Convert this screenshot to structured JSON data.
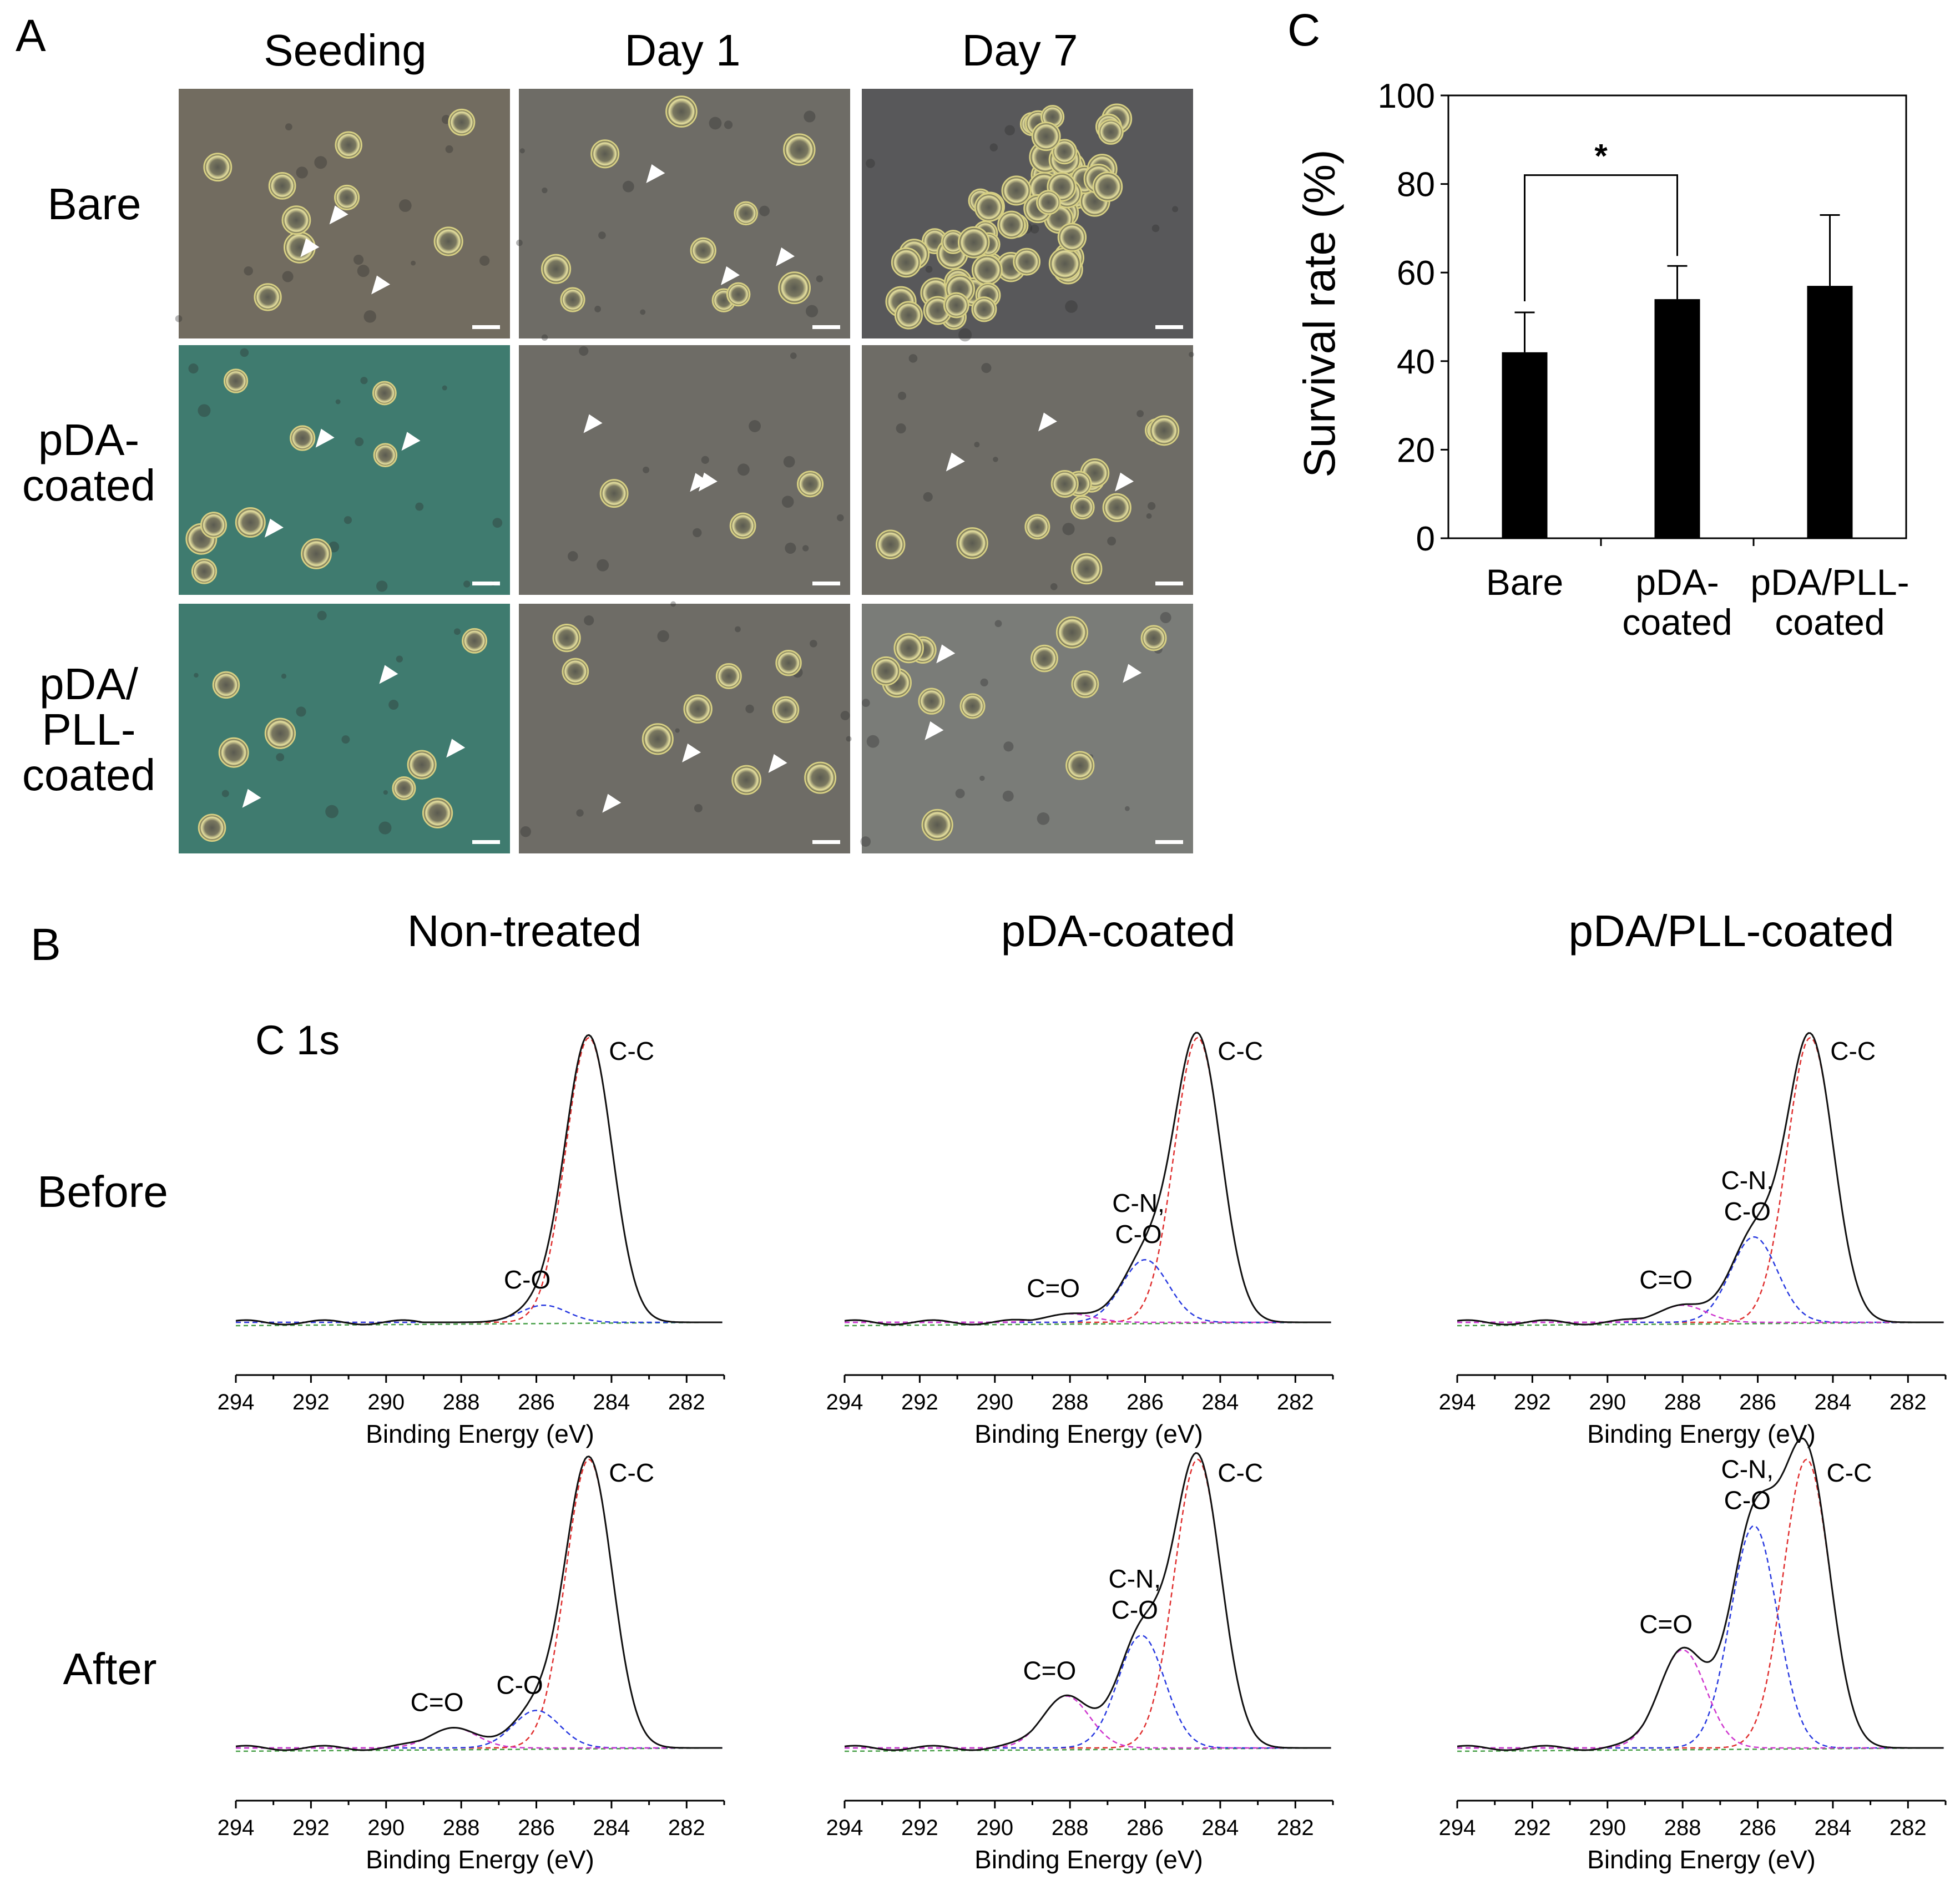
{
  "panel_labels": [
    "A",
    "B",
    "C"
  ],
  "panel_a": {
    "columns": [
      "Seeding",
      "Day 1",
      "Day 7"
    ],
    "rows": [
      [
        "Bare"
      ],
      [
        "pDA-",
        "coated"
      ],
      [
        "pDA/",
        "PLL-",
        "coated"
      ]
    ],
    "colors": {
      "bare": "#726c60",
      "pda": "#3f7b6f",
      "neutral": "#6e6c66",
      "cell": "#d6cf84"
    }
  },
  "chart_data": [
    {
      "type": "bar",
      "categories": [
        [
          "Bare"
        ],
        [
          "pDA-",
          "coated"
        ],
        [
          "pDA/PLL-",
          "coated"
        ]
      ],
      "values": [
        42,
        54,
        57
      ],
      "errors": [
        9,
        7.5,
        16
      ],
      "ylabel": "Survival rate (%)",
      "ylim": [
        0,
        100
      ],
      "yticks": [
        "0",
        "20",
        "40",
        "60",
        "80",
        "100"
      ],
      "significance": {
        "from": 0,
        "to": 1,
        "label": "*"
      },
      "grid": false,
      "bar_color": "#000000"
    },
    {
      "type": "line",
      "panel": "B",
      "column_titles": [
        "Non-treated",
        "pDA-coated",
        "pDA/PLL-coated"
      ],
      "row_titles": [
        "Before",
        "After"
      ],
      "spectrum_label": "C 1s",
      "xlabel": "Binding Energy (eV)",
      "xlim": [
        294,
        281
      ],
      "xticks": [
        "294",
        "292",
        "290",
        "288",
        "286",
        "284",
        "282"
      ],
      "series_colors": {
        "total": "#111111",
        "C-C": "#e03030",
        "C-N/C-O": "#2a3be0",
        "C=O": "#cf38cf",
        "baseline": "#49a049"
      },
      "spectra": [
        {
          "column": 0,
          "row": 0,
          "peaks": [
            {
              "label": "C-C",
              "center": 284.6,
              "height": 1.0
            },
            {
              "label": "C-O",
              "center": 285.8,
              "height": 0.06
            }
          ]
        },
        {
          "column": 1,
          "row": 0,
          "peaks": [
            {
              "label": "C-C",
              "center": 284.6,
              "height": 1.0
            },
            {
              "label": "C-N,\nC-O",
              "center": 286.0,
              "height": 0.22
            },
            {
              "label": "C=O",
              "center": 288.0,
              "height": 0.03
            }
          ]
        },
        {
          "column": 2,
          "row": 0,
          "peaks": [
            {
              "label": "C-C",
              "center": 284.6,
              "height": 1.0
            },
            {
              "label": "C-N,\nC-O",
              "center": 286.1,
              "height": 0.3
            },
            {
              "label": "C=O",
              "center": 288.0,
              "height": 0.06
            }
          ]
        },
        {
          "column": 0,
          "row": 1,
          "peaks": [
            {
              "label": "C-C",
              "center": 284.6,
              "height": 1.0
            },
            {
              "label": "C-O",
              "center": 286.0,
              "height": 0.13
            },
            {
              "label": "C=O",
              "center": 288.2,
              "height": 0.07
            }
          ]
        },
        {
          "column": 1,
          "row": 1,
          "peaks": [
            {
              "label": "C-C",
              "center": 284.6,
              "height": 1.0
            },
            {
              "label": "C-N,\nC-O",
              "center": 286.1,
              "height": 0.39
            },
            {
              "label": "C=O",
              "center": 288.1,
              "height": 0.18
            }
          ]
        },
        {
          "column": 2,
          "row": 1,
          "peaks": [
            {
              "label": "C-C",
              "center": 284.7,
              "height": 1.0
            },
            {
              "label": "C-N,\nC-O",
              "center": 286.1,
              "height": 0.77
            },
            {
              "label": "C=O",
              "center": 288.0,
              "height": 0.34
            }
          ]
        }
      ]
    }
  ]
}
